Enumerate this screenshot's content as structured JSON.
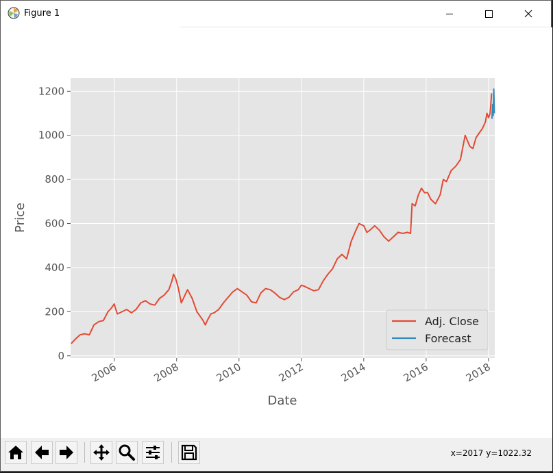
{
  "window": {
    "title": "Figure 1"
  },
  "chart_data": {
    "type": "line",
    "xlabel": "Date",
    "ylabel": "Price",
    "x_range": [
      2004.6,
      2018.2
    ],
    "ylim": [
      -10,
      1260
    ],
    "x_ticks": [
      2006,
      2008,
      2010,
      2012,
      2014,
      2016,
      2018
    ],
    "x_tick_labels": [
      "2006",
      "2008",
      "2010",
      "2012",
      "2014",
      "2016",
      "2018"
    ],
    "y_ticks": [
      0,
      200,
      400,
      600,
      800,
      1000,
      1200
    ],
    "y_tick_labels": [
      "0",
      "200",
      "400",
      "600",
      "800",
      "1000",
      "1200"
    ],
    "grid": true,
    "legend_position": "lower-right",
    "colors": {
      "background": "#e5e5e5",
      "grid": "#ffffff",
      "adj_close": "#e24a33",
      "forecast": "#348abd"
    },
    "series": [
      {
        "name": "Adj. Close",
        "x": [
          2004.62,
          2004.75,
          2004.9,
          2005.05,
          2005.2,
          2005.35,
          2005.5,
          2005.65,
          2005.8,
          2005.9,
          2006.0,
          2006.05,
          2006.1,
          2006.25,
          2006.4,
          2006.55,
          2006.7,
          2006.85,
          2007.0,
          2007.15,
          2007.3,
          2007.45,
          2007.6,
          2007.75,
          2007.85,
          2007.9,
          2007.97,
          2008.05,
          2008.15,
          2008.25,
          2008.35,
          2008.5,
          2008.65,
          2008.75,
          2008.85,
          2008.92,
          2009.0,
          2009.1,
          2009.2,
          2009.35,
          2009.5,
          2009.65,
          2009.8,
          2009.95,
          2010.1,
          2010.25,
          2010.4,
          2010.55,
          2010.7,
          2010.85,
          2011.0,
          2011.15,
          2011.3,
          2011.45,
          2011.6,
          2011.75,
          2011.9,
          2012.0,
          2012.1,
          2012.25,
          2012.4,
          2012.55,
          2012.7,
          2012.85,
          2013.0,
          2013.15,
          2013.3,
          2013.45,
          2013.6,
          2013.75,
          2013.85,
          2014.0,
          2014.1,
          2014.2,
          2014.35,
          2014.5,
          2014.65,
          2014.8,
          2014.95,
          2015.1,
          2015.25,
          2015.4,
          2015.5,
          2015.55,
          2015.65,
          2015.75,
          2015.85,
          2015.95,
          2016.05,
          2016.15,
          2016.3,
          2016.45,
          2016.55,
          2016.65,
          2016.8,
          2016.95,
          2017.1,
          2017.25,
          2017.4,
          2017.5,
          2017.6,
          2017.7,
          2017.8,
          2017.9,
          2017.95,
          2018.0,
          2018.05,
          2018.08,
          2018.1
        ],
        "values": [
          55,
          75,
          95,
          100,
          95,
          140,
          155,
          160,
          200,
          215,
          235,
          210,
          190,
          200,
          210,
          195,
          210,
          240,
          250,
          235,
          230,
          260,
          275,
          300,
          340,
          370,
          350,
          310,
          240,
          270,
          300,
          260,
          200,
          180,
          160,
          140,
          165,
          190,
          195,
          210,
          240,
          265,
          290,
          305,
          290,
          275,
          245,
          240,
          285,
          305,
          300,
          285,
          265,
          255,
          265,
          290,
          300,
          320,
          315,
          305,
          295,
          300,
          340,
          370,
          395,
          440,
          460,
          440,
          520,
          570,
          600,
          590,
          560,
          570,
          590,
          570,
          540,
          520,
          540,
          560,
          555,
          560,
          555,
          690,
          680,
          730,
          760,
          740,
          740,
          710,
          690,
          730,
          800,
          790,
          840,
          860,
          890,
          1000,
          950,
          940,
          990,
          1010,
          1030,
          1060,
          1100,
          1080,
          1100,
          1150,
          1190
        ]
      },
      {
        "name": "Forecast",
        "x": [
          2018.11,
          2018.13,
          2018.15,
          2018.17,
          2018.19
        ],
        "values": [
          1075,
          1140,
          1090,
          1210,
          1100
        ]
      }
    ]
  },
  "toolbar": {
    "buttons": [
      {
        "icon": "home-icon"
      },
      {
        "icon": "back-arrow-icon"
      },
      {
        "icon": "forward-arrow-icon"
      },
      {
        "icon": "pan-icon"
      },
      {
        "icon": "zoom-icon"
      },
      {
        "icon": "configure-subplots-icon"
      },
      {
        "icon": "save-icon"
      }
    ],
    "coordinates": "x=2017 y=1022.32"
  }
}
